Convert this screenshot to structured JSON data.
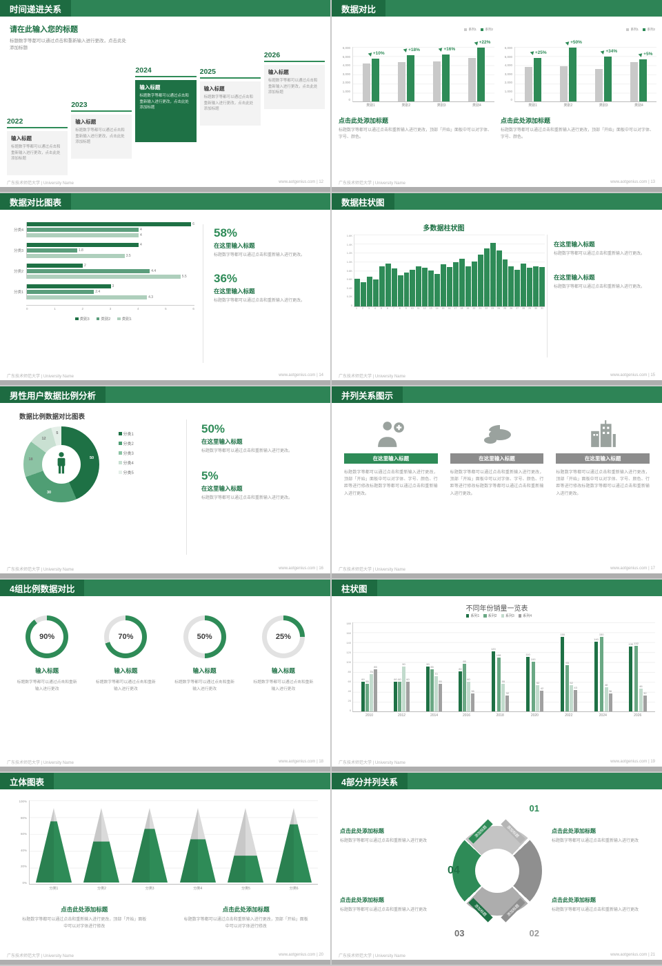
{
  "common": {
    "footer_left": "广东技术师范大学 | University Name",
    "site": "www.aotgenius.com"
  },
  "colors": {
    "green_dark": "#1e7145",
    "green": "#2e8b57",
    "gray_bar": "#c9c9c9"
  },
  "slides": {
    "s12": {
      "title": "时间递进关系",
      "footer_right": "www.aotgenius.com | 12",
      "intro_title": "请在此输入您的标题",
      "intro_text": "标题数字等都可以通过点击和重新输入进行更改，点击此处添加标题",
      "items": [
        {
          "year": "2022",
          "head": "输入标题",
          "body": "标题数字等都可以通过点击和重新输入进行更改，点击此处添加标题",
          "highlight": false
        },
        {
          "year": "2023",
          "head": "输入标题",
          "body": "标题数字等都可以通过点击和重新输入进行更改，点击此处添加标题",
          "highlight": false
        },
        {
          "year": "2024",
          "head": "输入标题",
          "body": "标题数字等都可以通过点击和重新输入进行更改，点击此处添加标题",
          "highlight": true
        },
        {
          "year": "2025",
          "head": "输入标题",
          "body": "标题数字等都可以通过点击和重新输入进行更改，点击此处添加标题",
          "highlight": false
        },
        {
          "year": "2026",
          "head": "输入标题",
          "body": "标题数字等都可以通过点击和重新输入进行更改，点击此处添加标题",
          "highlight": false
        }
      ]
    },
    "s13": {
      "title": "数据对比",
      "footer_right": "www.aotgenius.com | 13",
      "charts": [
        {
          "legend": [
            "系列1",
            "系列2"
          ],
          "categories": [
            "类别1",
            "类别2",
            "类别3",
            "类别4"
          ],
          "series1": [
            4200,
            4300,
            4400,
            4800
          ],
          "series2": [
            4700,
            5100,
            5200,
            5900
          ],
          "pct": [
            "+10%",
            "+18%",
            "+16%",
            "+22%"
          ],
          "yticks": [
            "6,000",
            "5,000",
            "4,000",
            "3,000",
            "2,000",
            "1,000",
            "0"
          ],
          "ymax": 6000,
          "caption": "点击此处添加标题",
          "caption_text": "标题数字等都可以通过点击和重新输入进行更改，顶部「开始」面板中可以对字体、字号、颜色。"
        },
        {
          "legend": [
            "系列1",
            "系列2"
          ],
          "categories": [
            "类别1",
            "类别2",
            "类别3",
            "类别4"
          ],
          "series1": [
            3800,
            3900,
            3600,
            4300
          ],
          "series2": [
            4800,
            5900,
            4900,
            4600
          ],
          "pct": [
            "+25%",
            "+50%",
            "+34%",
            "+5%"
          ],
          "yticks": [
            "6,000",
            "5,000",
            "4,000",
            "3,000",
            "2,000",
            "1,000",
            "0"
          ],
          "ymax": 6000,
          "caption": "点击此处添加标题",
          "caption_text": "标题数字等都可以通过点击和重新输入进行更改，顶部「开始」面板中可以对字体、字号、颜色。"
        }
      ]
    },
    "s14": {
      "title": "数据对比图表",
      "footer_right": "www.aotgenius.com | 14",
      "chart": {
        "categories": [
          "分类4",
          "分类3",
          "分类2",
          "分类1"
        ],
        "legend": [
          "类别3",
          "类别2",
          "类别1"
        ],
        "values": [
          [
            6,
            4,
            4
          ],
          [
            4,
            1.8,
            3.5
          ],
          [
            2,
            4.4,
            5.5
          ],
          [
            3,
            2.4,
            4.3
          ]
        ],
        "xticks": [
          "0",
          "1",
          "2",
          "3",
          "4",
          "5",
          "6"
        ],
        "xmax": 6
      },
      "stats": [
        {
          "pct": "58%",
          "head": "在这里输入标题",
          "text": "标题数字等都可以通过点击和重新输入进行更改。"
        },
        {
          "pct": "36%",
          "head": "在这里输入标题",
          "text": "标题数字等都可以通过点击和重新输入进行更改。"
        }
      ]
    },
    "s15": {
      "title": "数据柱状图",
      "footer_right": "www.aotgenius.com | 15",
      "chart_title": "多数据柱状图",
      "values": [
        620,
        540,
        660,
        600,
        900,
        950,
        840,
        700,
        760,
        820,
        900,
        860,
        800,
        720,
        940,
        880,
        980,
        1060,
        900,
        1000,
        1150,
        1300,
        1420,
        1250,
        1050,
        900,
        820,
        950,
        860,
        900,
        870
      ],
      "yticks": [
        "1.6K",
        "1.4K",
        "1.2K",
        "1.0K",
        "0.8K",
        "0.6K",
        "0.4K",
        "0.2K",
        "0"
      ],
      "ymax": 1600,
      "stats": [
        {
          "head": "在这里输入标题",
          "text": "标题数字等都可以通过点击和重新输入进行更改。"
        },
        {
          "head": "在这里输入标题",
          "text": "标题数字等都可以通过点击和重新输入进行更改。"
        }
      ]
    },
    "s16": {
      "title": "男性用户数据比例分析",
      "footer_right": "www.aotgenius.com | 16",
      "chart_title": "数据比例数据对比图表",
      "donut": {
        "values": [
          50,
          30,
          18,
          12,
          5
        ],
        "legend": [
          "分类1",
          "分类2",
          "分类3",
          "分类4",
          "分类5"
        ]
      },
      "stats": [
        {
          "pct": "50%",
          "head": "在这里输入标题",
          "text": "标题数字等都可以通过点击和重新输入进行更改。"
        },
        {
          "pct": "5%",
          "head": "在这里输入标题",
          "text": "标题数字等都可以通过点击和重新输入进行更改。"
        }
      ]
    },
    "s17": {
      "title": "并列关系图示",
      "footer_right": "www.aotgenius.com | 17",
      "columns": [
        {
          "icon": "medical-person-icon",
          "head": "在这里输入标题",
          "text": "标题数字等都可以通过点击和重新输入进行更改，顶部「开始」面板中可以对字体、字号、颜色、行距等进行修改标题数字等都可以通过点击和重新输入进行更改。"
        },
        {
          "icon": "pie-3d-icon",
          "head": "在这里输入标题",
          "text": "标题数字等都可以通过点击和重新输入进行更改，顶部「开始」面板中可以对字体、字号、颜色、行距等进行修改标题数字等都可以通过点击和重新输入进行更改。"
        },
        {
          "icon": "building-icon",
          "head": "在这里输入标题",
          "text": "标题数字等都可以通过点击和重新输入进行更改，顶部「开始」面板中可以对字体、字号、颜色、行距等进行修改标题数字等都可以通过点击和重新输入进行更改。"
        }
      ]
    },
    "s18": {
      "title": "4组比例数据对比",
      "footer_right": "www.aotgenius.com | 18",
      "rings": [
        {
          "value": 90,
          "label": "90%",
          "head": "输入标题",
          "text": "标题数字等都可以通过点击和重新输入进行更改"
        },
        {
          "value": 70,
          "label": "70%",
          "head": "输入标题",
          "text": "标题数字等都可以通过点击和重新输入进行更改"
        },
        {
          "value": 50,
          "label": "50%",
          "head": "输入标题",
          "text": "标题数字等都可以通过点击和重新输入进行更改"
        },
        {
          "value": 25,
          "label": "25%",
          "head": "输入标题",
          "text": "标题数字等都可以通过点击和重新输入进行更改"
        }
      ]
    },
    "s19": {
      "title": "柱状图",
      "footer_right": "www.aotgenius.com | 19",
      "chart_title": "不同年份销量一览表",
      "categories": [
        "2010",
        "2012",
        "2014",
        "2016",
        "2018",
        "2020",
        "2022",
        "2024",
        "2026"
      ],
      "series": [
        {
          "name": "系列1",
          "values": [
            60,
            60,
            90,
            80,
            120,
            110,
            150,
            140,
            130
          ]
        },
        {
          "name": "系列2",
          "values": [
            55,
            60,
            85,
            95,
            108,
            100,
            93,
            150,
            132
          ]
        },
        {
          "name": "系列3",
          "values": [
            75,
            90,
            70,
            60,
            55,
            52,
            52,
            48,
            46
          ]
        },
        {
          "name": "系列4",
          "values": [
            85,
            60,
            55,
            36,
            32,
            42,
            43,
            36,
            32
          ]
        }
      ],
      "yticks": [
        "180",
        "160",
        "140",
        "120",
        "100",
        "80",
        "60",
        "40",
        "20",
        "0"
      ],
      "ymax": 180
    },
    "s20": {
      "title": "立体图表",
      "footer_right": "www.aotgenius.com | 20",
      "cones": {
        "categories": [
          "分类1",
          "分类2",
          "分类3",
          "分类4",
          "分类5",
          "分类6"
        ],
        "fill": [
          82,
          55,
          72,
          58,
          36,
          78
        ]
      },
      "yticks": [
        "100%",
        "80%",
        "60%",
        "40%",
        "20%",
        "0%"
      ],
      "blocks": [
        {
          "head": "点击此处添加标题",
          "text": "标题数字等都可以通过点击和重新输入进行更改，顶部「开始」面板中可以对字体进行修改"
        },
        {
          "head": "点击此处添加标题",
          "text": "标题数字等都可以通过点击和重新输入进行更改，顶部「开始」面板中可以对字体进行修改"
        }
      ]
    },
    "s21": {
      "title": "4部分并列关系",
      "footer_right": "www.aotgenius.com | 21",
      "ribbon": "添加标题",
      "numbers": [
        "01",
        "02",
        "03",
        "04"
      ],
      "blocks": [
        {
          "head": "点击此处添加标题",
          "text": "标题数字等都可以通过点击和重新输入进行更改"
        },
        {
          "head": "点击此处添加标题",
          "text": "标题数字等都可以通过点击和重新输入进行更改"
        },
        {
          "head": "点击此处添加标题",
          "text": "标题数字等都可以通过点击和重新输入进行更改"
        },
        {
          "head": "点击此处添加标题",
          "text": "标题数字等都可以通过点击和重新输入进行更改"
        }
      ]
    }
  }
}
